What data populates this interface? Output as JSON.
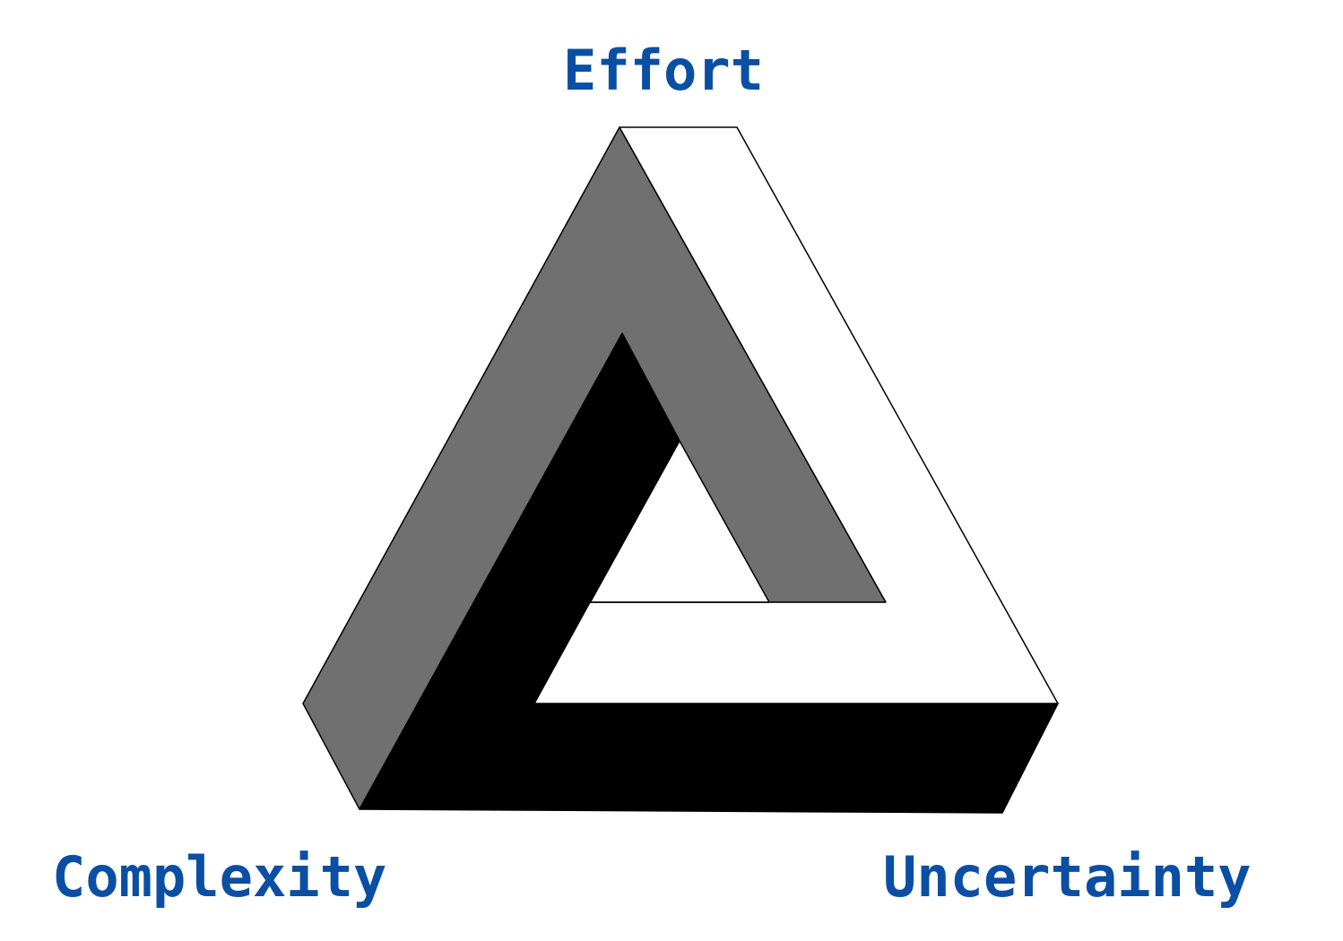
{
  "labels": {
    "top": "Effort",
    "bottom_left": "Complexity",
    "bottom_right": "Uncertainty"
  },
  "colors": {
    "label_text": "#0a4fa3",
    "face_gray": "#707070",
    "face_black": "#000000",
    "face_white": "#ffffff",
    "outline": "#000000"
  },
  "figure": {
    "type": "impossible-triangle",
    "faces": [
      "gray",
      "black",
      "white"
    ]
  }
}
